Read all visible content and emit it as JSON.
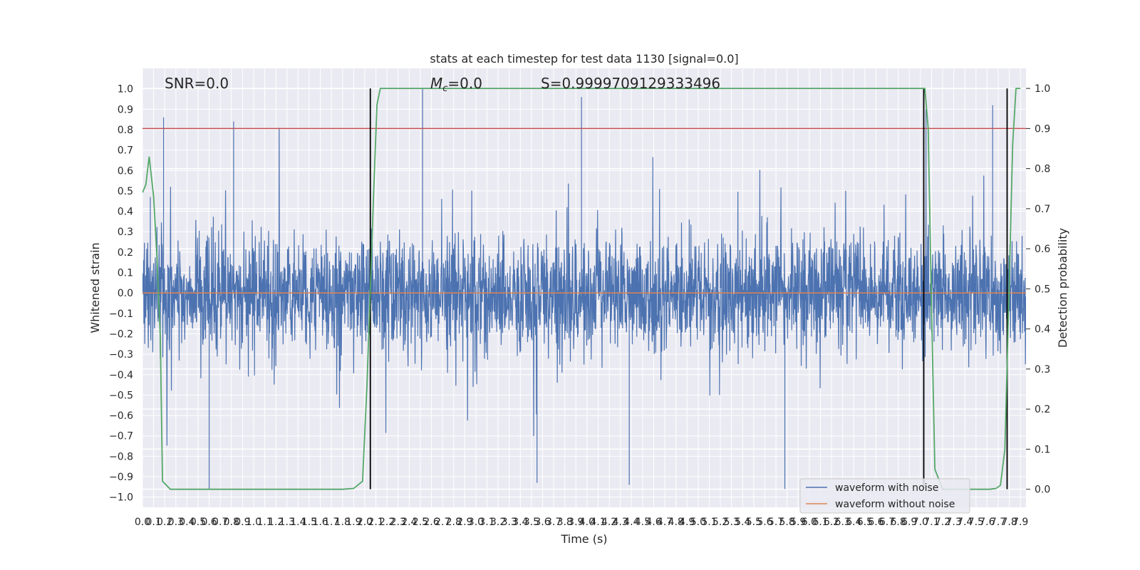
{
  "chart_data": {
    "type": "line",
    "title": "stats at each timestep for test data 1130 [signal=0.0]",
    "xlabel": "Time (s)",
    "ylabel": "Whitened strain",
    "y2label": "Detection probability",
    "xlim": [
      0.0,
      7.95
    ],
    "ylim": [
      -1.05,
      1.1
    ],
    "y2lim": [
      -0.045,
      1.05
    ],
    "x_ticks": [
      0.0,
      0.1,
      0.2,
      0.3,
      0.4,
      0.5,
      0.6,
      0.7,
      0.8,
      0.9,
      1.0,
      1.1,
      1.2,
      1.3,
      1.4,
      1.5,
      1.6,
      1.7,
      1.8,
      1.9,
      2.0,
      2.1,
      2.2,
      2.3,
      2.4,
      2.5,
      2.6,
      2.7,
      2.8,
      2.9,
      3.0,
      3.1,
      3.2,
      3.3,
      3.4,
      3.5,
      3.6,
      3.7,
      3.8,
      3.9,
      4.0,
      4.1,
      4.2,
      4.3,
      4.4,
      4.5,
      4.6,
      4.7,
      4.8,
      4.9,
      5.0,
      5.1,
      5.2,
      5.3,
      5.4,
      5.5,
      5.6,
      5.7,
      5.8,
      5.9,
      6.0,
      6.1,
      6.2,
      6.3,
      6.4,
      6.5,
      6.6,
      6.7,
      6.8,
      6.9,
      7.0,
      7.1,
      7.2,
      7.3,
      7.4,
      7.5,
      7.6,
      7.7,
      7.8,
      7.9
    ],
    "x_tick_labels": [
      "0.0",
      "0.1",
      "0.2",
      "0.3",
      "0.4",
      "0.5",
      "0.6",
      "0.7",
      "0.8",
      "0.9",
      "1.0",
      "1.1",
      "1.2",
      "1.3",
      "1.4",
      "1.5",
      "1.6",
      "1.7",
      "1.8",
      "1.9",
      "2.0",
      "2.1",
      "2.2",
      "2.3",
      "2.4",
      "2.5",
      "2.6",
      "2.7",
      "2.8",
      "2.9",
      "3.0",
      "3.1",
      "3.2",
      "3.3",
      "3.4",
      "3.5",
      "3.6",
      "3.7",
      "3.8",
      "3.9",
      "4.0",
      "4.1",
      "4.2",
      "4.3",
      "4.4",
      "4.5",
      "4.6",
      "4.7",
      "4.8",
      "4.9",
      "5.0",
      "5.1",
      "5.2",
      "5.3",
      "5.4",
      "5.5",
      "5.6",
      "5.7",
      "5.8",
      "5.9",
      "6.0",
      "6.1",
      "6.2",
      "6.3",
      "6.4",
      "6.5",
      "6.6",
      "6.7",
      "6.8",
      "6.9",
      "7.0",
      "7.1",
      "7.2",
      "7.3",
      "7.4",
      "7.5",
      "7.6",
      "7.7",
      "7.8",
      "7.9"
    ],
    "y_ticks": [
      -1.0,
      -0.9,
      -0.8,
      -0.7,
      -0.6,
      -0.5,
      -0.4,
      -0.3,
      -0.2,
      -0.1,
      0.0,
      0.1,
      0.2,
      0.3,
      0.4,
      0.5,
      0.6,
      0.7,
      0.8,
      0.9,
      1.0
    ],
    "y_tick_labels": [
      "−1.0",
      "−0.9",
      "−0.8",
      "−0.7",
      "−0.6",
      "−0.5",
      "−0.4",
      "−0.3",
      "−0.2",
      "−0.1",
      "0.0",
      "0.1",
      "0.2",
      "0.3",
      "0.4",
      "0.5",
      "0.6",
      "0.7",
      "0.8",
      "0.9",
      "1.0"
    ],
    "y2_ticks": [
      0.0,
      0.1,
      0.2,
      0.3,
      0.4,
      0.5,
      0.6,
      0.7,
      0.8,
      0.9,
      1.0
    ],
    "y2_tick_labels": [
      "0.0",
      "0.1",
      "0.2",
      "0.3",
      "0.4",
      "0.5",
      "0.6",
      "0.7",
      "0.8",
      "0.9",
      "1.0"
    ],
    "grid": true,
    "legend_position": "bottom-right",
    "annotations": {
      "snr": "SNR=0.0",
      "mc_symbol": "M",
      "mc_subscript": "c",
      "mc_value": "=0.0",
      "s": "S=0.9999709129333496"
    },
    "threshold": {
      "axis": "right",
      "value": 0.9,
      "color": "#c44e52"
    },
    "vertical_lines": [
      2.05,
      7.03,
      7.78
    ],
    "series": [
      {
        "name": "waveform with noise",
        "axis": "left",
        "color": "#4c72b0",
        "description_values": "dense white-noise strain, typical amplitude ±0.5 with peaks up to ±1.0",
        "sample_rate_per_s": 400,
        "peaks": [
          {
            "x": 0.07,
            "y": 0.47
          },
          {
            "x": 0.19,
            "y": 0.86
          },
          {
            "x": 0.82,
            "y": 0.84
          },
          {
            "x": 2.52,
            "y": 1.0
          },
          {
            "x": 3.95,
            "y": 0.96
          },
          {
            "x": 7.05,
            "y": 0.9
          },
          {
            "x": 7.65,
            "y": 0.92
          },
          {
            "x": 0.6,
            "y": -0.96
          },
          {
            "x": 3.55,
            "y": -0.93
          },
          {
            "x": 4.38,
            "y": -0.94
          },
          {
            "x": 5.78,
            "y": -0.96
          },
          {
            "x": 7.03,
            "y": -0.9
          }
        ]
      },
      {
        "name": "waveform without noise",
        "axis": "left",
        "color": "#dd8452",
        "x": [
          0.0,
          7.95
        ],
        "values": [
          0.0,
          0.0
        ]
      },
      {
        "name": "detection probability",
        "axis": "right",
        "color": "#55a868",
        "x": [
          0.0,
          0.03,
          0.06,
          0.1,
          0.13,
          0.16,
          0.18,
          0.25,
          0.5,
          1.0,
          1.5,
          1.8,
          1.9,
          1.98,
          2.02,
          2.05,
          2.08,
          2.11,
          2.14,
          2.5,
          3.0,
          4.0,
          5.0,
          6.0,
          6.9,
          7.0,
          7.04,
          7.07,
          7.1,
          7.13,
          7.2,
          7.3,
          7.45,
          7.55,
          7.62,
          7.68,
          7.72,
          7.76,
          7.8,
          7.83,
          7.86,
          7.9
        ],
        "values": [
          0.74,
          0.76,
          0.83,
          0.73,
          0.58,
          0.38,
          0.02,
          0.0,
          0.0,
          0.0,
          0.0,
          0.0,
          0.002,
          0.02,
          0.26,
          0.5,
          0.74,
          0.96,
          1.0,
          1.0,
          1.0,
          1.0,
          1.0,
          1.0,
          1.0,
          1.0,
          1.0,
          0.9,
          0.45,
          0.05,
          0.0,
          0.0,
          0.0,
          0.0,
          0.0,
          0.002,
          0.01,
          0.1,
          0.52,
          0.86,
          1.0,
          1.0
        ]
      }
    ]
  }
}
